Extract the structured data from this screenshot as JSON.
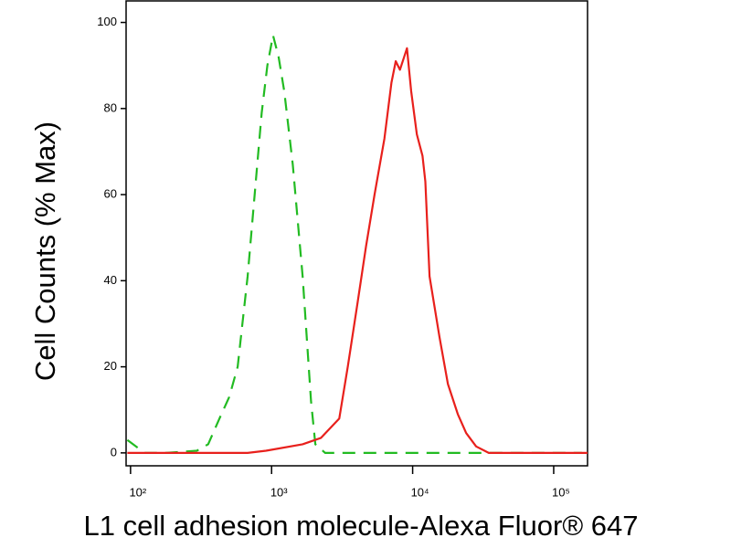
{
  "chart_data": {
    "type": "line",
    "xlabel": "L1 cell adhesion molecule-Alexa Fluor® 647",
    "ylabel": "Cell Counts (% Max)",
    "xscale": "log",
    "xlim": [
      93,
      173780
    ],
    "ylim": [
      -3,
      105
    ],
    "xticks": [
      {
        "value": 100,
        "label": "10²"
      },
      {
        "value": 1000,
        "label": "10³"
      },
      {
        "value": 10000,
        "label": "10⁴"
      },
      {
        "value": 100000,
        "label": "10⁵"
      }
    ],
    "yticks": [
      0,
      20,
      40,
      60,
      80,
      100
    ],
    "grid": false,
    "series": [
      {
        "color": "#22bb22",
        "line_style": "dashed",
        "x": [
          95,
          126,
          178,
          295,
          355,
          427,
          501,
          575,
          676,
          759,
          851,
          933,
          1023,
          1122,
          1230,
          1413,
          1660,
          1905,
          2042,
          2399,
          5012,
          15849,
          50119,
          158489
        ],
        "values": [
          3,
          0,
          0,
          0.5,
          2,
          8,
          13,
          20,
          41,
          60,
          79,
          90,
          97,
          92,
          84,
          67,
          41,
          12,
          2,
          0,
          0,
          0,
          0,
          0
        ]
      },
      {
        "color": "#e8201c",
        "line_style": "solid",
        "x": [
          95,
          676,
          912,
          1660,
          2239,
          3020,
          3467,
          4074,
          4677,
          5370,
          6310,
          7079,
          7586,
          8128,
          8710,
          9120,
          9772,
          10715,
          11749,
          12303,
          13183,
          15488,
          17783,
          20893,
          23988,
          28184,
          34674,
          173780
        ],
        "values": [
          0,
          0,
          0.5,
          2,
          3.5,
          8,
          20,
          35,
          48,
          60,
          73,
          86,
          91,
          89,
          92,
          94,
          84,
          74,
          69,
          63,
          41,
          27,
          16,
          9,
          4.6,
          1.5,
          0,
          0
        ]
      }
    ]
  }
}
